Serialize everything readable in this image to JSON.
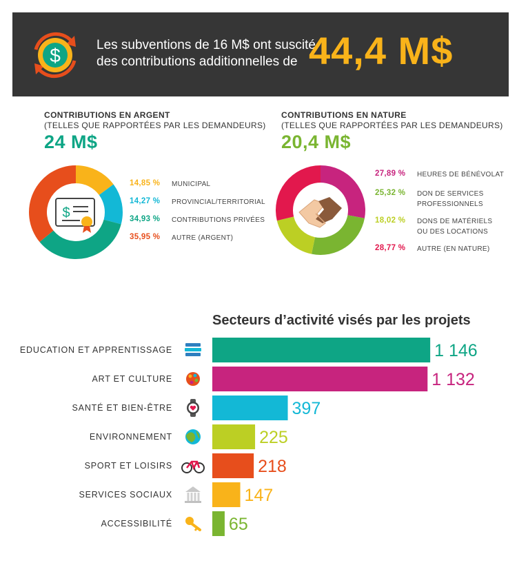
{
  "banner": {
    "line1": "Les subventions de 16 M$ ont suscité",
    "line2": "des contributions additionnelles de",
    "amount": "44,4 M$",
    "icon": "dollar-cycle-icon",
    "colors": {
      "background": "#363636",
      "amount": "#f9b31a",
      "icon_ring": "#e74e1c",
      "icon_circle": "#f9b31a",
      "icon_inner": "#0ea585"
    }
  },
  "cash": {
    "title": "CONTRIBUTIONS EN ARGENT",
    "subtitle": "(TELLES QUE RAPPORTÉES PAR LES DEMANDEURS)",
    "amount": "24 M$",
    "amount_color": "#0ea585",
    "icon": "certificate-icon",
    "items": [
      {
        "pct": "14,85 %",
        "value": 14.85,
        "label": "MUNICIPAL",
        "color": "#f9b31a"
      },
      {
        "pct": "14,27 %",
        "value": 14.27,
        "label": "PROVINCIAL/TERRITORIAL",
        "color": "#13b8d6"
      },
      {
        "pct": "34,93 %",
        "value": 34.93,
        "label": "CONTRIBUTIONS PRIVÉES",
        "color": "#0ea585"
      },
      {
        "pct": "35,95 %",
        "value": 35.95,
        "label": "AUTRE (ARGENT)",
        "color": "#e74e1c"
      }
    ]
  },
  "inkind": {
    "title": "CONTRIBUTIONS EN NATURE",
    "subtitle": "(TELLES QUE RAPPORTÉES PAR LES DEMANDEURS)",
    "amount": "20,4 M$",
    "amount_color": "#7ab531",
    "icon": "handshake-icon",
    "items": [
      {
        "pct": "27,89 %",
        "value": 27.89,
        "label_lines": [
          "HEURES DE BÉNÉVOLAT"
        ],
        "color": "#c7247e"
      },
      {
        "pct": "25,32 %",
        "value": 25.32,
        "label_lines": [
          "DON DE SERVICES",
          "PROFESSIONNELS"
        ],
        "color": "#7ab531"
      },
      {
        "pct": "18,02 %",
        "value": 18.02,
        "label_lines": [
          "DONS DE MATÉRIELS",
          "OU DES LOCATIONS"
        ],
        "color": "#bccf24"
      },
      {
        "pct": "28,77 %",
        "value": 28.77,
        "label_lines": [
          "AUTRE (EN NATURE)"
        ],
        "color": "#e2184d"
      }
    ]
  },
  "chart_data": {
    "type": "bar",
    "orientation": "horizontal",
    "title": "Secteurs d’activité visés par les projets",
    "categories": [
      "EDUCATION ET APPRENTISSAGE",
      "ART ET CULTURE",
      "SANTÉ ET BIEN-ÊTRE",
      "ENVIRONNEMENT",
      "SPORT ET LOISIRS",
      "SERVICES SOCIAUX",
      "ACCESSIBILITÉ"
    ],
    "values": [
      1146,
      1132,
      397,
      225,
      218,
      147,
      65
    ],
    "value_labels": [
      "1 146",
      "1 132",
      "397",
      "225",
      "218",
      "147",
      "65"
    ],
    "colors": [
      "#0ea585",
      "#c7247e",
      "#13b8d6",
      "#bccf24",
      "#e74e1c",
      "#f9b31a",
      "#7ab531"
    ],
    "icons": [
      "books-icon",
      "palette-icon",
      "heart-watch-icon",
      "globe-icon",
      "bicycle-icon",
      "building-icon",
      "key-icon"
    ],
    "grid": false,
    "legend": "none",
    "xlim": [
      0,
      1160
    ]
  }
}
